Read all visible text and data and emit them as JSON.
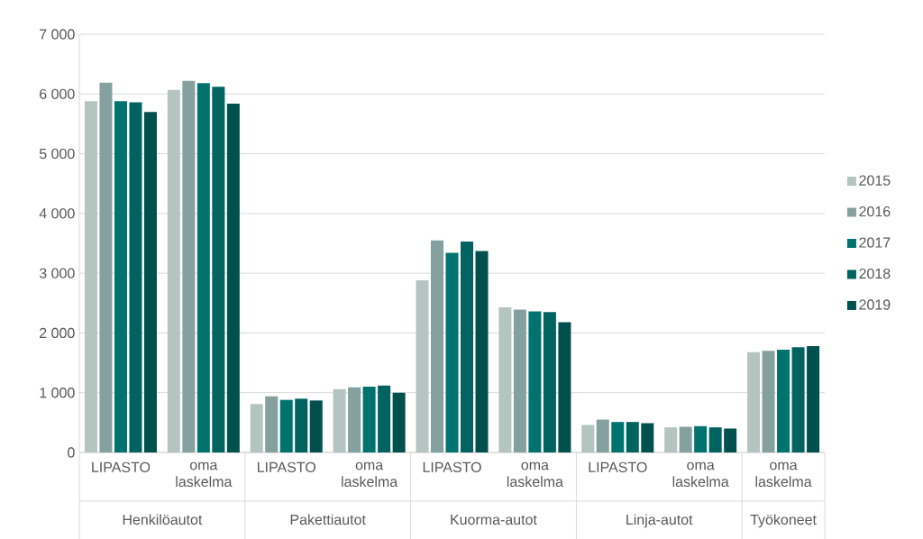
{
  "chart_data": {
    "type": "bar",
    "categories": [
      "LIPASTO",
      "oma laskelma",
      "LIPASTO",
      "oma laskelma",
      "LIPASTO",
      "oma laskelma",
      "LIPASTO",
      "oma laskelma",
      "oma laskelma"
    ],
    "annotations": [
      "Henkilöautot",
      "Pakettiautot",
      "Kuorma-autot",
      "Linja-autot",
      "Työkoneet"
    ],
    "series": [
      {
        "name": "2015",
        "color": "#b4c4c1",
        "values": [
          5880,
          6070,
          810,
          1060,
          2880,
          2430,
          460,
          420,
          1680
        ]
      },
      {
        "name": "2016",
        "color": "#84a09f",
        "values": [
          6190,
          6220,
          940,
          1090,
          3550,
          2390,
          550,
          430,
          1700
        ]
      },
      {
        "name": "2017",
        "color": "#00736f",
        "values": [
          5880,
          6180,
          880,
          1100,
          3340,
          2360,
          510,
          440,
          1720
        ]
      },
      {
        "name": "2018",
        "color": "#006360",
        "values": [
          5860,
          6120,
          900,
          1120,
          3530,
          2350,
          510,
          420,
          1760
        ]
      },
      {
        "name": "2019",
        "color": "#00504e",
        "values": [
          5700,
          5840,
          870,
          1000,
          3370,
          2180,
          490,
          400,
          1780
        ]
      }
    ],
    "ylim": [
      0,
      7000
    ],
    "yticks": [
      0,
      {
        "value": 1000,
        "label": "1 000"
      },
      {
        "value": 2000,
        "label": "2 000"
      },
      {
        "value": 3000,
        "label": "3 000"
      },
      {
        "value": 4000,
        "label": "4 000"
      },
      {
        "value": 5000,
        "label": "5 000"
      },
      {
        "value": 6000,
        "label": "6 000"
      },
      {
        "value": 7000,
        "label": "7 000"
      }
    ],
    "grid": "y",
    "legend": "right"
  }
}
